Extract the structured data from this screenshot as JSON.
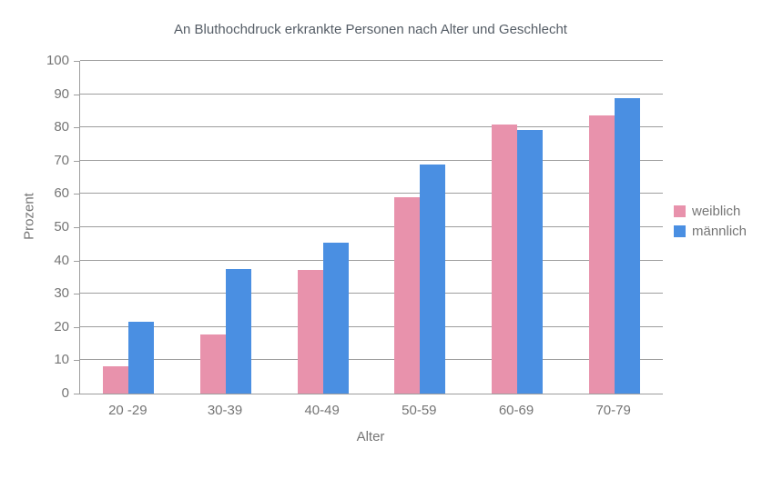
{
  "chart_data": {
    "type": "bar",
    "title": "An Bluthochdruck erkrankte Personen nach Alter und Geschlecht",
    "xlabel": "Alter",
    "ylabel": "Prozent",
    "categories": [
      "20 -29",
      "30-39",
      "40-49",
      "50-59",
      "60-69",
      "70-79"
    ],
    "series": [
      {
        "name": "weiblich",
        "color": "#e892ac",
        "values": [
          8.1,
          17.8,
          37.3,
          59.1,
          81.0,
          83.7
        ]
      },
      {
        "name": "männlich",
        "color": "#4a8fe2",
        "values": [
          21.7,
          37.4,
          45.5,
          69.0,
          79.2,
          88.7
        ]
      }
    ],
    "ylim": [
      0,
      100
    ],
    "yticks": [
      0,
      10,
      20,
      30,
      40,
      50,
      60,
      70,
      80,
      90,
      100
    ],
    "grid": true,
    "legend_position": "right"
  },
  "colors": {
    "female": "#e892ac",
    "male": "#4a8fe2",
    "grid": "#9e9e9e",
    "axis": "#9e9e9e",
    "tick_text": "#757575",
    "title_text": "#555d66",
    "background": "#ffffff"
  }
}
